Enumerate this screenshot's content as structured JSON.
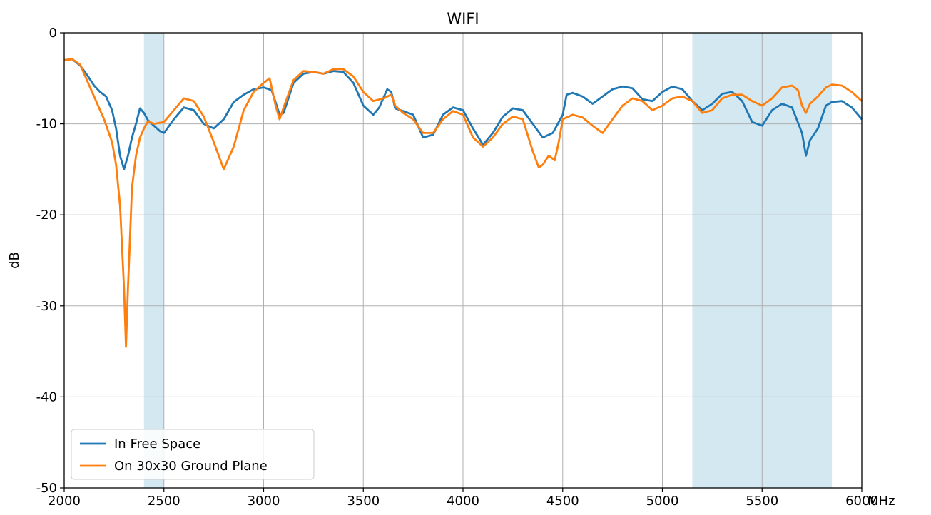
{
  "chart_data": {
    "type": "line",
    "title": "WIFI",
    "xlabel": "MHz",
    "ylabel": "dB",
    "xlim": [
      2000,
      6000
    ],
    "ylim": [
      -50,
      0
    ],
    "xticks": [
      2000,
      2500,
      3000,
      3500,
      4000,
      4500,
      5000,
      5500,
      6000
    ],
    "yticks": [
      0,
      -10,
      -20,
      -30,
      -40,
      -50
    ],
    "grid": true,
    "legend_position": "lower-left",
    "shaded_bands": [
      {
        "x0": 2400,
        "x1": 2500,
        "color": "#d3e8f0"
      },
      {
        "x0": 5150,
        "x1": 5850,
        "color": "#d3e8f0"
      }
    ],
    "series": [
      {
        "name": "In Free Space",
        "color": "#1f77b4",
        "points": [
          [
            2000,
            -3.0
          ],
          [
            2040,
            -2.9
          ],
          [
            2080,
            -3.6
          ],
          [
            2120,
            -4.8
          ],
          [
            2150,
            -5.8
          ],
          [
            2180,
            -6.5
          ],
          [
            2210,
            -7.0
          ],
          [
            2240,
            -8.5
          ],
          [
            2260,
            -10.5
          ],
          [
            2280,
            -13.5
          ],
          [
            2300,
            -15.0
          ],
          [
            2320,
            -13.5
          ],
          [
            2340,
            -11.5
          ],
          [
            2360,
            -10.0
          ],
          [
            2380,
            -8.3
          ],
          [
            2400,
            -8.8
          ],
          [
            2420,
            -9.6
          ],
          [
            2450,
            -10.2
          ],
          [
            2480,
            -10.8
          ],
          [
            2500,
            -11.0
          ],
          [
            2550,
            -9.5
          ],
          [
            2600,
            -8.2
          ],
          [
            2650,
            -8.5
          ],
          [
            2700,
            -10.0
          ],
          [
            2750,
            -10.5
          ],
          [
            2800,
            -9.5
          ],
          [
            2850,
            -7.6
          ],
          [
            2900,
            -6.8
          ],
          [
            2950,
            -6.2
          ],
          [
            3000,
            -6.0
          ],
          [
            3040,
            -6.3
          ],
          [
            3080,
            -9.0
          ],
          [
            3100,
            -8.8
          ],
          [
            3150,
            -5.5
          ],
          [
            3200,
            -4.5
          ],
          [
            3250,
            -4.3
          ],
          [
            3300,
            -4.5
          ],
          [
            3350,
            -4.2
          ],
          [
            3400,
            -4.3
          ],
          [
            3450,
            -5.5
          ],
          [
            3500,
            -8.0
          ],
          [
            3550,
            -9.0
          ],
          [
            3580,
            -8.2
          ],
          [
            3620,
            -6.2
          ],
          [
            3640,
            -6.5
          ],
          [
            3660,
            -8.3
          ],
          [
            3700,
            -8.6
          ],
          [
            3750,
            -9.0
          ],
          [
            3800,
            -11.5
          ],
          [
            3850,
            -11.2
          ],
          [
            3900,
            -9.0
          ],
          [
            3950,
            -8.2
          ],
          [
            4000,
            -8.5
          ],
          [
            4050,
            -10.5
          ],
          [
            4100,
            -12.3
          ],
          [
            4150,
            -11.0
          ],
          [
            4200,
            -9.2
          ],
          [
            4250,
            -8.3
          ],
          [
            4300,
            -8.5
          ],
          [
            4350,
            -10.0
          ],
          [
            4400,
            -11.5
          ],
          [
            4450,
            -11.0
          ],
          [
            4500,
            -9.0
          ],
          [
            4520,
            -6.8
          ],
          [
            4550,
            -6.6
          ],
          [
            4600,
            -7.0
          ],
          [
            4650,
            -7.8
          ],
          [
            4700,
            -7.0
          ],
          [
            4750,
            -6.2
          ],
          [
            4800,
            -5.9
          ],
          [
            4850,
            -6.1
          ],
          [
            4900,
            -7.3
          ],
          [
            4950,
            -7.5
          ],
          [
            5000,
            -6.5
          ],
          [
            5050,
            -5.9
          ],
          [
            5100,
            -6.2
          ],
          [
            5150,
            -7.5
          ],
          [
            5200,
            -8.5
          ],
          [
            5250,
            -7.8
          ],
          [
            5300,
            -6.7
          ],
          [
            5350,
            -6.5
          ],
          [
            5400,
            -7.5
          ],
          [
            5450,
            -9.8
          ],
          [
            5500,
            -10.2
          ],
          [
            5550,
            -8.5
          ],
          [
            5600,
            -7.8
          ],
          [
            5650,
            -8.2
          ],
          [
            5700,
            -11.0
          ],
          [
            5720,
            -13.5
          ],
          [
            5740,
            -11.8
          ],
          [
            5780,
            -10.5
          ],
          [
            5820,
            -8.0
          ],
          [
            5850,
            -7.6
          ],
          [
            5900,
            -7.5
          ],
          [
            5950,
            -8.2
          ],
          [
            6000,
            -9.5
          ]
        ]
      },
      {
        "name": "On 30x30 Ground Plane",
        "color": "#ff7f0e",
        "points": [
          [
            2000,
            -3.0
          ],
          [
            2040,
            -2.9
          ],
          [
            2080,
            -3.5
          ],
          [
            2120,
            -5.5
          ],
          [
            2160,
            -7.5
          ],
          [
            2200,
            -9.5
          ],
          [
            2240,
            -12.0
          ],
          [
            2260,
            -14.5
          ],
          [
            2280,
            -19.0
          ],
          [
            2300,
            -28.0
          ],
          [
            2310,
            -34.5
          ],
          [
            2320,
            -28.0
          ],
          [
            2340,
            -17.0
          ],
          [
            2360,
            -13.5
          ],
          [
            2380,
            -11.5
          ],
          [
            2400,
            -10.5
          ],
          [
            2420,
            -9.7
          ],
          [
            2450,
            -10.0
          ],
          [
            2500,
            -9.8
          ],
          [
            2550,
            -8.5
          ],
          [
            2600,
            -7.2
          ],
          [
            2650,
            -7.5
          ],
          [
            2700,
            -9.2
          ],
          [
            2750,
            -12.0
          ],
          [
            2800,
            -15.0
          ],
          [
            2850,
            -12.5
          ],
          [
            2900,
            -8.5
          ],
          [
            2950,
            -6.5
          ],
          [
            3000,
            -5.5
          ],
          [
            3030,
            -5.0
          ],
          [
            3060,
            -8.0
          ],
          [
            3080,
            -9.5
          ],
          [
            3100,
            -8.2
          ],
          [
            3150,
            -5.2
          ],
          [
            3200,
            -4.2
          ],
          [
            3250,
            -4.3
          ],
          [
            3300,
            -4.5
          ],
          [
            3350,
            -4.0
          ],
          [
            3400,
            -4.0
          ],
          [
            3450,
            -4.8
          ],
          [
            3500,
            -6.5
          ],
          [
            3550,
            -7.5
          ],
          [
            3600,
            -7.2
          ],
          [
            3640,
            -6.8
          ],
          [
            3660,
            -8.0
          ],
          [
            3700,
            -8.8
          ],
          [
            3750,
            -9.5
          ],
          [
            3800,
            -11.0
          ],
          [
            3850,
            -11.0
          ],
          [
            3900,
            -9.5
          ],
          [
            3950,
            -8.6
          ],
          [
            4000,
            -9.0
          ],
          [
            4050,
            -11.5
          ],
          [
            4100,
            -12.5
          ],
          [
            4150,
            -11.5
          ],
          [
            4200,
            -10.0
          ],
          [
            4250,
            -9.2
          ],
          [
            4300,
            -9.5
          ],
          [
            4350,
            -13.0
          ],
          [
            4380,
            -14.8
          ],
          [
            4400,
            -14.5
          ],
          [
            4430,
            -13.5
          ],
          [
            4460,
            -14.0
          ],
          [
            4480,
            -12.0
          ],
          [
            4500,
            -9.5
          ],
          [
            4550,
            -9.0
          ],
          [
            4600,
            -9.3
          ],
          [
            4650,
            -10.2
          ],
          [
            4700,
            -11.0
          ],
          [
            4750,
            -9.5
          ],
          [
            4800,
            -8.0
          ],
          [
            4850,
            -7.2
          ],
          [
            4900,
            -7.5
          ],
          [
            4950,
            -8.5
          ],
          [
            5000,
            -8.0
          ],
          [
            5050,
            -7.2
          ],
          [
            5100,
            -7.0
          ],
          [
            5150,
            -7.5
          ],
          [
            5200,
            -8.8
          ],
          [
            5250,
            -8.5
          ],
          [
            5300,
            -7.2
          ],
          [
            5350,
            -6.8
          ],
          [
            5400,
            -6.8
          ],
          [
            5450,
            -7.5
          ],
          [
            5500,
            -8.0
          ],
          [
            5550,
            -7.2
          ],
          [
            5600,
            -6.0
          ],
          [
            5650,
            -5.8
          ],
          [
            5680,
            -6.3
          ],
          [
            5700,
            -8.0
          ],
          [
            5720,
            -8.8
          ],
          [
            5740,
            -7.8
          ],
          [
            5780,
            -7.0
          ],
          [
            5820,
            -6.0
          ],
          [
            5850,
            -5.7
          ],
          [
            5900,
            -5.8
          ],
          [
            5950,
            -6.5
          ],
          [
            6000,
            -7.5
          ]
        ]
      }
    ]
  }
}
